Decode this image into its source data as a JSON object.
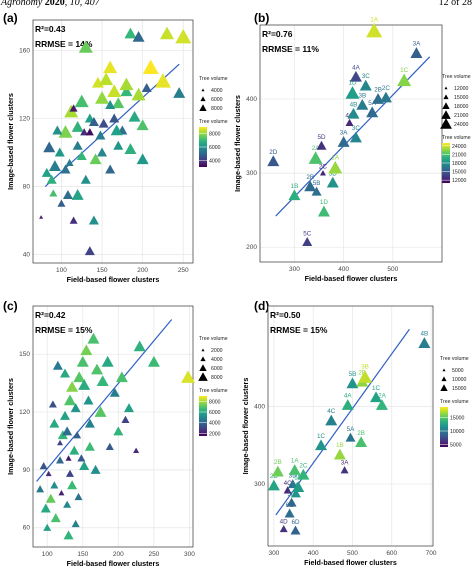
{
  "header": {
    "journal": "Agronomy",
    "year": "2020",
    "volume_pages": ", 10, 407",
    "page": "12 of 28"
  },
  "chart_data": [
    {
      "panel_label": "(a)",
      "type": "scatter",
      "r2": "R²=0.43",
      "rrmse": "RRMSE = 14%",
      "xlabel": "Field-based flower clusters",
      "ylabel": "Image-based flower clusters",
      "xlim": [
        65,
        262
      ],
      "ylim": [
        35,
        178
      ],
      "xticks": [
        100,
        150,
        200,
        250
      ],
      "yticks": [
        40,
        80,
        120,
        160
      ],
      "fit": [
        [
          80,
          80
        ],
        [
          245,
          152
        ]
      ],
      "color_range": [
        3000,
        9000
      ],
      "color_title": "Tree volume",
      "color_ticks": [
        4000,
        6000,
        8000
      ],
      "size_title": "Tree volume",
      "size_ticks": [
        4000,
        6000,
        8000
      ],
      "points": [
        [
          75,
          62,
          3500,
          2
        ],
        [
          85,
          103,
          5000,
          6
        ],
        [
          98,
          100,
          6200,
          5
        ],
        [
          110,
          94,
          5500,
          4
        ],
        [
          125,
          98,
          7000,
          5
        ],
        [
          130,
          84,
          6000,
          5
        ],
        [
          120,
          75,
          6500,
          6
        ],
        [
          108,
          75,
          5200,
          5
        ],
        [
          100,
          70,
          4800,
          4
        ],
        [
          90,
          76,
          7200,
          4
        ],
        [
          82,
          88,
          6400,
          5
        ],
        [
          92,
          92,
          5600,
          6
        ],
        [
          105,
          112,
          7800,
          7
        ],
        [
          112,
          124,
          8200,
          7
        ],
        [
          120,
          115,
          6900,
          6
        ],
        [
          125,
          130,
          7200,
          7
        ],
        [
          135,
          120,
          6400,
          5
        ],
        [
          140,
          118,
          4800,
          5
        ],
        [
          128,
          112,
          3800,
          4
        ],
        [
          148,
          110,
          5500,
          5
        ],
        [
          150,
          132,
          8000,
          7
        ],
        [
          145,
          141,
          8600,
          6
        ],
        [
          160,
          150,
          8800,
          7
        ],
        [
          155,
          143,
          8400,
          7
        ],
        [
          165,
          136,
          8500,
          7
        ],
        [
          170,
          129,
          7400,
          6
        ],
        [
          160,
          128,
          6000,
          5
        ],
        [
          180,
          136,
          7000,
          6
        ],
        [
          190,
          121,
          6600,
          6
        ],
        [
          175,
          113,
          5200,
          5
        ],
        [
          165,
          120,
          4600,
          5
        ],
        [
          170,
          104,
          6200,
          5
        ],
        [
          150,
          100,
          5800,
          5
        ],
        [
          142,
          96,
          7600,
          6
        ],
        [
          160,
          90,
          5000,
          5
        ],
        [
          185,
          102,
          6800,
          6
        ],
        [
          200,
          116,
          7300,
          6
        ],
        [
          195,
          134,
          8200,
          7
        ],
        [
          210,
          150,
          9000,
          8
        ],
        [
          225,
          142,
          8800,
          8
        ],
        [
          245,
          135,
          5600,
          6
        ],
        [
          185,
          170,
          7000,
          6
        ],
        [
          195,
          168,
          5000,
          6
        ],
        [
          230,
          170,
          8500,
          7
        ],
        [
          250,
          168,
          8600,
          8
        ],
        [
          130,
          162,
          7600,
          7
        ],
        [
          105,
          90,
          5200,
          5
        ],
        [
          115,
          60,
          3800,
          4
        ],
        [
          140,
          60,
          6000,
          5
        ],
        [
          135,
          42,
          4200,
          5
        ],
        [
          120,
          104,
          5600,
          5
        ],
        [
          115,
          126,
          3400,
          4
        ],
        [
          135,
          112,
          3200,
          4
        ],
        [
          152,
          117,
          4400,
          5
        ],
        [
          168,
          113,
          6400,
          6
        ],
        [
          200,
          96,
          6200,
          6
        ],
        [
          88,
          84,
          6800,
          5
        ],
        [
          95,
          113,
          6000,
          5
        ],
        [
          180,
          140,
          8200,
          7
        ],
        [
          205,
          138,
          4800,
          5
        ]
      ]
    },
    {
      "panel_label": "(b)",
      "type": "scatter",
      "r2": "R²=0.76",
      "rrmse": "RRMSE = 11%",
      "xlabel": "Field-based flower clusters",
      "ylabel": "Image-based flower clusters",
      "xlim": [
        230,
        600
      ],
      "ylim": [
        180,
        500
      ],
      "xticks": [
        300,
        400,
        500
      ],
      "yticks": [
        200,
        300,
        400
      ],
      "fit": [
        [
          262,
          242
        ],
        [
          575,
          457
        ]
      ],
      "color_range": [
        11000,
        25000
      ],
      "color_title": "Tree volume",
      "color_ticks": [
        12000,
        15000,
        18000,
        21000,
        24000
      ],
      "size_title": "Tree volume",
      "size_ticks": [
        12000,
        15000,
        18000,
        21000,
        24000
      ],
      "points": [
        [
          257,
          316,
          14800,
          6,
          "2D"
        ],
        [
          300,
          270,
          19800,
          6,
          "1B"
        ],
        [
          332,
          282,
          15800,
          6,
          "2B"
        ],
        [
          343,
          320,
          21000,
          7,
          "2A"
        ],
        [
          355,
          337,
          13000,
          5,
          "5D"
        ],
        [
          358,
          300,
          12400,
          3,
          "2C"
        ],
        [
          345,
          275,
          16000,
          5,
          "5B"
        ],
        [
          360,
          248,
          20600,
          6,
          "1D"
        ],
        [
          378,
          287,
          18200,
          6,
          "3D"
        ],
        [
          383,
          307,
          22800,
          7,
          "1A"
        ],
        [
          400,
          342,
          15800,
          6,
          "3A"
        ],
        [
          412,
          368,
          12600,
          4,
          "4C"
        ],
        [
          425,
          348,
          17500,
          6,
          "3C"
        ],
        [
          420,
          380,
          17800,
          6,
          "4B"
        ],
        [
          418,
          408,
          18800,
          7,
          "1D"
        ],
        [
          425,
          430,
          14000,
          6,
          "4A"
        ],
        [
          438,
          392,
          16800,
          6,
          "3B"
        ],
        [
          445,
          418,
          17400,
          6,
          "3C"
        ],
        [
          470,
          400,
          16000,
          6,
          "2B"
        ],
        [
          458,
          382,
          15800,
          6,
          "5A"
        ],
        [
          486,
          402,
          16600,
          6,
          "2C"
        ],
        [
          523,
          425,
          22400,
          7,
          "1C"
        ],
        [
          548,
          462,
          15200,
          6,
          "3A"
        ],
        [
          462,
          492,
          24000,
          8,
          "1A"
        ],
        [
          326,
          207,
          13600,
          5,
          "5C"
        ]
      ]
    },
    {
      "panel_label": "(c)",
      "type": "scatter",
      "r2": "R²=0.42",
      "rrmse": "RRMSE = 15%",
      "xlabel": "Field-based flower clusters",
      "ylabel": "Image-based flower clusters",
      "xlim": [
        80,
        305
      ],
      "ylim": [
        50,
        175
      ],
      "xticks": [
        100,
        150,
        200,
        250,
        300
      ],
      "yticks": [
        60,
        90,
        120,
        150
      ],
      "fit": [
        [
          85,
          84
        ],
        [
          275,
          168
        ]
      ],
      "color_range": [
        1500,
        9000
      ],
      "color_title": "Tree volume",
      "color_ticks": [
        2000,
        4000,
        6000,
        8000
      ],
      "size_title": "Tree volume",
      "size_ticks": [
        2000,
        4000,
        6000,
        8000
      ],
      "points": [
        [
          90,
          80,
          4500,
          4
        ],
        [
          95,
          92,
          3500,
          4
        ],
        [
          102,
          88,
          2500,
          3
        ],
        [
          98,
          70,
          6000,
          5
        ],
        [
          105,
          75,
          7200,
          5
        ],
        [
          110,
          82,
          5200,
          4
        ],
        [
          112,
          65,
          6800,
          5
        ],
        [
          100,
          60,
          5800,
          4
        ],
        [
          118,
          95,
          4000,
          4
        ],
        [
          122,
          108,
          6400,
          5
        ],
        [
          125,
          118,
          5800,
          5
        ],
        [
          128,
          110,
          4200,
          5
        ],
        [
          132,
          126,
          6900,
          6
        ],
        [
          135,
          133,
          7600,
          6
        ],
        [
          140,
          122,
          5400,
          5
        ],
        [
          142,
          108,
          3800,
          4
        ],
        [
          138,
          100,
          6200,
          5
        ],
        [
          145,
          138,
          7000,
          6
        ],
        [
          150,
          146,
          6800,
          6
        ],
        [
          152,
          134,
          6100,
          6
        ],
        [
          158,
          126,
          5400,
          5
        ],
        [
          160,
          114,
          4800,
          5
        ],
        [
          148,
          96,
          3600,
          4
        ],
        [
          132,
          88,
          3000,
          4
        ],
        [
          120,
          78,
          2200,
          3
        ],
        [
          128,
          72,
          5000,
          4
        ],
        [
          135,
          82,
          6600,
          5
        ],
        [
          144,
          76,
          4400,
          4
        ],
        [
          155,
          152,
          7400,
          6
        ],
        [
          165,
          158,
          6800,
          6
        ],
        [
          170,
          142,
          6900,
          6
        ],
        [
          178,
          136,
          6500,
          6
        ],
        [
          185,
          146,
          6000,
          6
        ],
        [
          195,
          130,
          4600,
          5
        ],
        [
          205,
          138,
          6800,
          6
        ],
        [
          215,
          122,
          5800,
          5
        ],
        [
          230,
          154,
          6300,
          6
        ],
        [
          250,
          146,
          6600,
          6
        ],
        [
          298,
          138,
          8600,
          7
        ],
        [
          225,
          100,
          2400,
          3
        ],
        [
          210,
          116,
          3000,
          4
        ],
        [
          200,
          110,
          6400,
          5
        ],
        [
          188,
          102,
          3600,
          4
        ],
        [
          175,
          120,
          7000,
          6
        ],
        [
          168,
          90,
          5200,
          5
        ],
        [
          115,
          144,
          4600,
          5
        ],
        [
          125,
          140,
          6000,
          5
        ],
        [
          108,
          124,
          3400,
          4
        ],
        [
          140,
          62,
          4800,
          4
        ],
        [
          130,
          56,
          6400,
          5
        ],
        [
          118,
          104,
          3000,
          3
        ],
        [
          130,
          96,
          2000,
          3
        ],
        [
          110,
          114,
          6000,
          5
        ],
        [
          152,
          92,
          5800,
          5
        ],
        [
          160,
          102,
          6600,
          5
        ]
      ]
    },
    {
      "panel_label": "(d)",
      "type": "scatter",
      "r2": "R²=0.50",
      "rrmse": "RRMSE = 15%",
      "xlabel": "Field-based flower clusters",
      "ylabel": "Image-based flower clusters",
      "xlim": [
        285,
        705
      ],
      "ylim": [
        220,
        530
      ],
      "xticks": [
        300,
        400,
        500,
        600,
        700
      ],
      "yticks": [
        300,
        400
      ],
      "fit": [
        [
          305,
          260
        ],
        [
          645,
          500
        ]
      ],
      "color_range": [
        4000,
        19000
      ],
      "color_title": "Tree volume",
      "color_ticks": [
        5000,
        10000,
        15000
      ],
      "size_title": "Tree volume",
      "size_ticks": [
        5000,
        10000,
        15000
      ],
      "points": [
        [
          300,
          298,
          12800,
          6,
          "2D"
        ],
        [
          310,
          316,
          15600,
          6,
          "2B"
        ],
        [
          335,
          292,
          5800,
          4,
          "4C"
        ],
        [
          345,
          276,
          8800,
          5,
          "5D"
        ],
        [
          348,
          300,
          9600,
          5,
          "3D"
        ],
        [
          356,
          288,
          11800,
          5,
          "3C"
        ],
        [
          353,
          318,
          14600,
          6,
          "1A"
        ],
        [
          362,
          296,
          12200,
          6,
          "5D"
        ],
        [
          340,
          262,
          9400,
          5,
          "6C"
        ],
        [
          325,
          242,
          6200,
          4,
          "4D"
        ],
        [
          355,
          240,
          8800,
          5,
          "6D"
        ],
        [
          375,
          312,
          13800,
          6,
          "2C"
        ],
        [
          420,
          350,
          11800,
          6,
          "1C"
        ],
        [
          446,
          382,
          10600,
          6,
          "4C"
        ],
        [
          495,
          360,
          9800,
          5,
          "5A"
        ],
        [
          468,
          338,
          16600,
          6,
          "1B"
        ],
        [
          480,
          318,
          6200,
          4,
          "3A"
        ],
        [
          522,
          354,
          14600,
          6,
          "2B"
        ],
        [
          488,
          402,
          13400,
          6,
          "4A"
        ],
        [
          500,
          430,
          11800,
          6,
          "5B"
        ],
        [
          525,
          432,
          16400,
          6,
          "2B"
        ],
        [
          532,
          438,
          17600,
          7,
          "3B"
        ],
        [
          560,
          412,
          12600,
          6,
          "1C"
        ],
        [
          575,
          402,
          13800,
          6,
          "2A"
        ],
        [
          683,
          482,
          10400,
          6,
          "4B"
        ]
      ]
    }
  ]
}
